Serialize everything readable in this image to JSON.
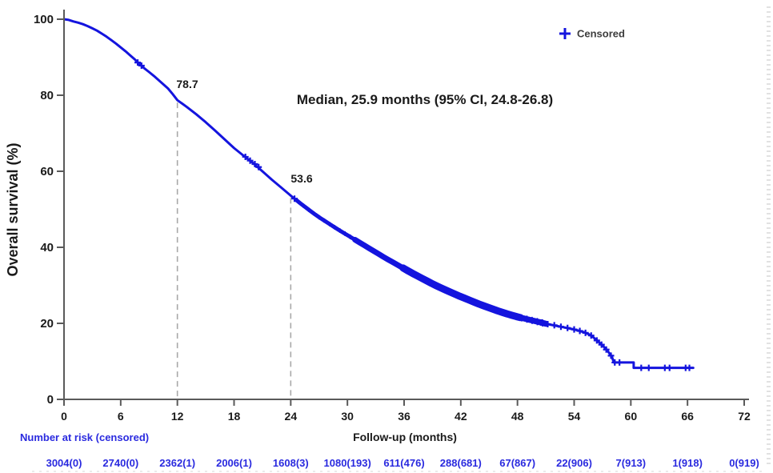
{
  "colors": {
    "curve_blue": "#1414DE",
    "risk_text_blue": "#2A2ADF",
    "axis_gray": "#5a5a5a",
    "dashed_gray": "#a8a8a8",
    "text_black": "#1a1a1a",
    "legend_text": "#3c3c3c",
    "background": "#ffffff"
  },
  "chart_data": {
    "type": "line",
    "subtype": "kaplan-meier-survival",
    "title": "",
    "xlabel": "Follow-up (months)",
    "ylabel": "Overall survival (%)",
    "xlim": [
      0,
      72
    ],
    "ylim": [
      0,
      100
    ],
    "x_ticks": [
      0,
      6,
      12,
      18,
      24,
      30,
      36,
      42,
      48,
      54,
      60,
      66,
      72
    ],
    "y_ticks": [
      0,
      20,
      40,
      60,
      80,
      100
    ],
    "grid": false,
    "legend": {
      "symbol": "plus",
      "label": "Censored",
      "position": "top-right"
    },
    "annotation": "Median, 25.9 months (95% CI, 24.8-26.8)",
    "reference_lines": [
      {
        "x": 12,
        "y": 78.7,
        "label": "78.7"
      },
      {
        "x": 24,
        "y": 53.6,
        "label": "53.6"
      }
    ],
    "series": [
      {
        "name": "Overall survival",
        "points": [
          [
            0,
            100
          ],
          [
            0.5,
            99.8
          ],
          [
            1,
            99.4
          ],
          [
            1.5,
            99.1
          ],
          [
            2,
            98.7
          ],
          [
            2.5,
            98.2
          ],
          [
            3,
            97.6
          ],
          [
            3.5,
            97.0
          ],
          [
            4,
            96.2
          ],
          [
            4.5,
            95.4
          ],
          [
            5,
            94.5
          ],
          [
            5.5,
            93.6
          ],
          [
            6,
            92.6
          ],
          [
            6.5,
            91.6
          ],
          [
            7,
            90.5
          ],
          [
            7.5,
            89.4
          ],
          [
            8,
            88.2
          ],
          [
            8.5,
            87.1
          ],
          [
            9,
            86.1
          ],
          [
            9.5,
            85.1
          ],
          [
            10,
            84.0
          ],
          [
            10.5,
            82.9
          ],
          [
            11,
            81.8
          ],
          [
            11.5,
            80.3
          ],
          [
            12,
            78.7
          ],
          [
            12.5,
            77.8
          ],
          [
            13,
            76.9
          ],
          [
            14,
            75.0
          ],
          [
            15,
            72.9
          ],
          [
            16,
            70.7
          ],
          [
            17,
            68.4
          ],
          [
            18,
            66.1
          ],
          [
            19,
            64.1
          ],
          [
            20,
            62.2
          ],
          [
            21,
            60.0
          ],
          [
            22,
            57.8
          ],
          [
            23,
            55.7
          ],
          [
            24,
            53.6
          ],
          [
            25,
            51.6
          ],
          [
            26,
            49.7
          ],
          [
            27,
            47.9
          ],
          [
            28,
            46.3
          ],
          [
            29,
            44.7
          ],
          [
            30,
            43.2
          ],
          [
            31,
            41.7
          ],
          [
            32,
            40.2
          ],
          [
            33,
            38.7
          ],
          [
            34,
            37.2
          ],
          [
            35,
            35.8
          ],
          [
            36,
            34.4
          ],
          [
            37,
            33.0
          ],
          [
            38,
            31.7
          ],
          [
            39,
            30.4
          ],
          [
            40,
            29.2
          ],
          [
            41,
            28.1
          ],
          [
            42,
            27.0
          ],
          [
            43,
            26.0
          ],
          [
            44,
            25.0
          ],
          [
            45,
            24.1
          ],
          [
            46,
            23.2
          ],
          [
            47,
            22.4
          ],
          [
            48,
            21.7
          ],
          [
            49,
            21.1
          ],
          [
            50,
            20.5
          ],
          [
            51,
            19.9
          ],
          [
            52,
            19.4
          ],
          [
            53,
            18.9
          ],
          [
            54,
            18.4
          ],
          [
            55,
            17.7
          ],
          [
            55.5,
            17.2
          ],
          [
            56,
            16.4
          ],
          [
            56.5,
            15.3
          ],
          [
            57,
            14.2
          ],
          [
            57.5,
            12.9
          ],
          [
            58,
            11.2
          ],
          [
            58.2,
            9.7
          ],
          [
            60.3,
            9.7
          ],
          [
            60.3,
            8.3
          ],
          [
            66.6,
            8.3
          ]
        ]
      }
    ],
    "censor_marks": [
      [
        7.8,
        88.6
      ],
      [
        8.2,
        87.8
      ],
      [
        19.2,
        63.8
      ],
      [
        19.7,
        62.8
      ],
      [
        20.2,
        61.9
      ],
      [
        20.6,
        61.1
      ],
      [
        24.4,
        52.8
      ],
      [
        50.5,
        20.2
      ],
      [
        51.2,
        19.8
      ],
      [
        51.9,
        19.5
      ],
      [
        52.6,
        19.1
      ],
      [
        53.3,
        18.8
      ],
      [
        54.0,
        18.4
      ],
      [
        54.6,
        18.0
      ],
      [
        55.2,
        17.5
      ],
      [
        55.8,
        16.8
      ],
      [
        56.4,
        15.5
      ],
      [
        56.9,
        14.4
      ],
      [
        57.4,
        13.1
      ],
      [
        57.9,
        11.5
      ],
      [
        58.3,
        9.7
      ],
      [
        58.8,
        9.7
      ],
      [
        61.1,
        8.3
      ],
      [
        61.9,
        8.3
      ],
      [
        63.6,
        8.3
      ],
      [
        64.1,
        8.3
      ],
      [
        65.8,
        8.3
      ],
      [
        66.2,
        8.3
      ]
    ],
    "dense_censor_band": {
      "from": 24.6,
      "to": 51.0
    },
    "number_at_risk": {
      "label": "Number at risk (censored)",
      "months": [
        0,
        6,
        12,
        18,
        24,
        30,
        36,
        42,
        48,
        54,
        60,
        66,
        72
      ],
      "values": [
        "3004(0)",
        "2740(0)",
        "2362(1)",
        "2006(1)",
        "1608(3)",
        "1080(193)",
        "611(476)",
        "288(681)",
        "67(867)",
        "22(906)",
        "7(913)",
        "1(918)",
        "0(919)"
      ]
    }
  }
}
